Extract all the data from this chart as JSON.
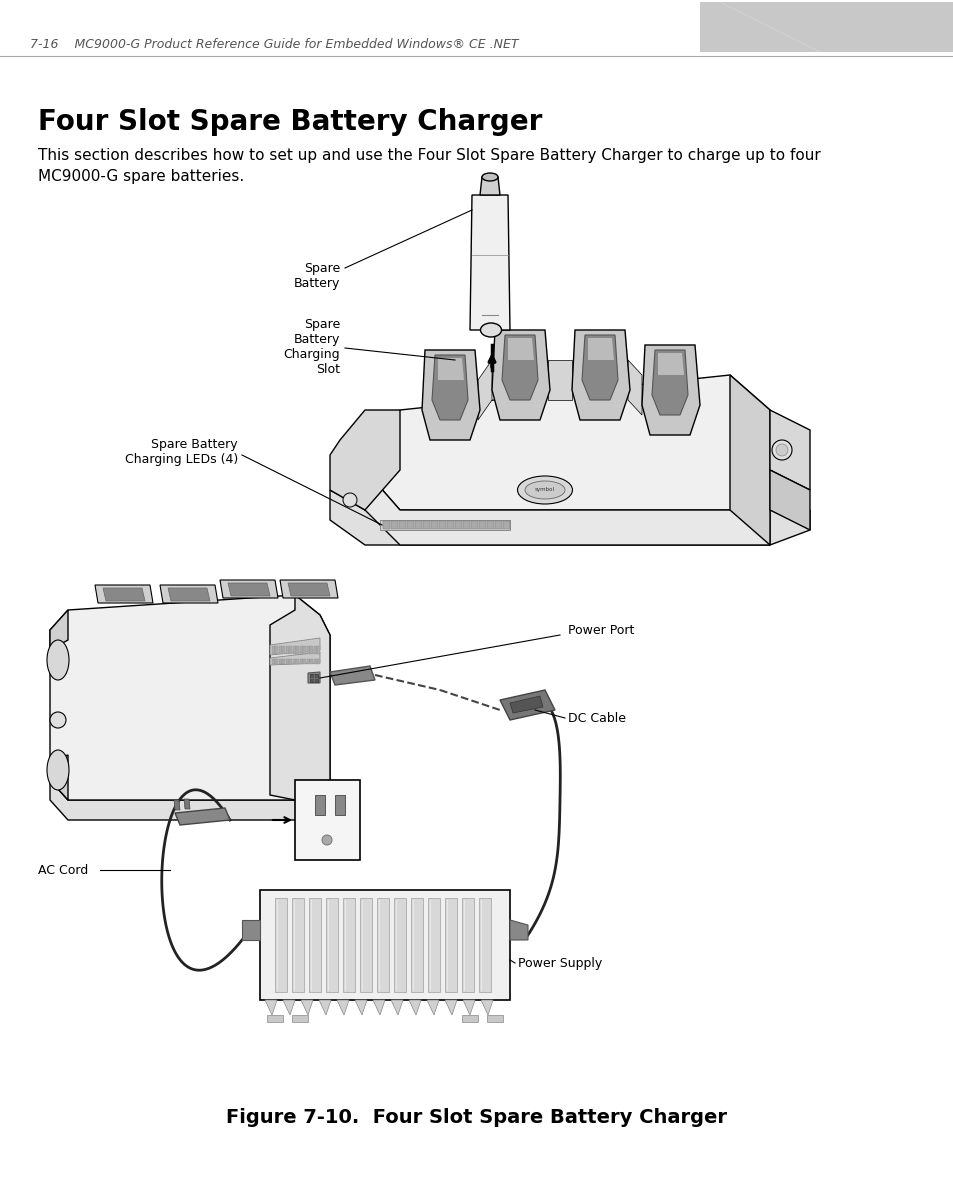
{
  "page_header_left": "7-16    MC9000-G Product Reference Guide for Embedded Windows® CE .NET",
  "title": "Four Slot Spare Battery Charger",
  "body_text": "This section describes how to set up and use the Four Slot Spare Battery Charger to charge up to four\nMC9000-G spare batteries.",
  "figure_caption": "Figure 7-10.  Four Slot Spare Battery Charger",
  "label_spare_battery": "Spare\nBattery",
  "label_charging_slot": "Spare\nBattery\nCharging\nSlot",
  "label_charging_leds": "Spare Battery\nCharging LEDs (4)",
  "label_power_port": "Power Port",
  "label_dc_cable": "DC Cable",
  "label_ac_cord": "AC Cord",
  "label_power_supply": "Power Supply",
  "bg_color": "#ffffff",
  "text_color": "#000000",
  "header_color": "#555555",
  "gray_tab_color": "#c8c8c8",
  "line_color": "#000000",
  "fill_light": "#f0f0f0",
  "fill_mid": "#d8d8d8",
  "fill_dark": "#aaaaaa",
  "title_fontsize": 20,
  "body_fontsize": 11,
  "caption_fontsize": 14,
  "header_fontsize": 9,
  "label_fontsize": 9,
  "fig_width": 9.54,
  "fig_height": 12.02
}
